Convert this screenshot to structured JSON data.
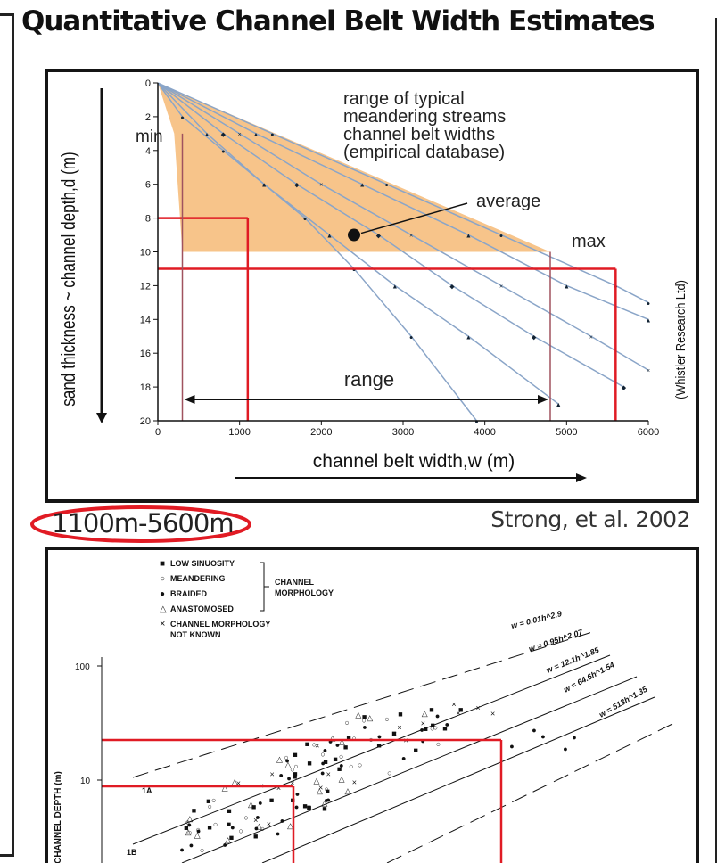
{
  "title": "Quantitative Channel Belt Width Estimates",
  "top_chart": {
    "ylabel": "sand thickness ~ channel depth,d (m)",
    "xlabel": "channel belt width,w (m)",
    "x_ticks": [
      "0",
      "1000",
      "2000",
      "3000",
      "4000",
      "5000",
      "6000"
    ],
    "y_ticks": [
      "0",
      "2",
      "4",
      "6",
      "8",
      "10",
      "12",
      "14",
      "16",
      "18",
      "20"
    ],
    "annotations": {
      "range_line1": "range of typical",
      "range_line2": "meandering streams",
      "range_line3": "channel belt widths",
      "range_line4": "(empirical database)",
      "average": "average",
      "min": "min",
      "max": "max",
      "range": "range",
      "credit": "(Whistler Research Ltd)"
    }
  },
  "range_result": "1100m-5600m",
  "citation": "Strong, et al. 2002",
  "bottom_chart": {
    "ylabel": "CHANNEL DEPTH (m)",
    "y_ticks": [
      "100",
      "10"
    ],
    "legend": [
      {
        "symbol": "■",
        "label": "LOW SINUOSITY"
      },
      {
        "symbol": "○",
        "label": "MEANDERING"
      },
      {
        "symbol": "●",
        "label": "BRAIDED"
      },
      {
        "symbol": "△",
        "label": "ANASTOMOSED"
      },
      {
        "symbol": "×",
        "label": "CHANNEL MORPHOLOGY"
      },
      {
        "symbol": "",
        "label": "NOT KNOWN"
      }
    ],
    "legend_group": [
      "CHANNEL",
      "MORPHOLOGY"
    ],
    "equations": [
      "w = 0.01h^2.9",
      "w = 0.95h^2.07",
      "w = 12.1h^1.85",
      "w = 64.6h^1.54",
      "w = 513h^1.35"
    ],
    "point_labels": [
      "1A",
      "1B"
    ]
  },
  "chart_data": [
    {
      "type": "line",
      "title": "",
      "xlabel": "channel belt width,w (m)",
      "ylabel": "sand thickness ~ channel depth,d (m)",
      "xlim": [
        0,
        6000
      ],
      "ylim": [
        20,
        0
      ],
      "series": [
        {
          "x": [
            0,
            300,
            800,
            1300,
            1800,
            2400,
            3100,
            3900
          ],
          "y": [
            0,
            2,
            4,
            6,
            8,
            11,
            15,
            20
          ]
        },
        {
          "x": [
            0,
            600,
            1300,
            2100,
            2900,
            3800,
            4900
          ],
          "y": [
            0,
            3,
            6,
            9,
            12,
            15,
            19
          ]
        },
        {
          "x": [
            0,
            800,
            1700,
            2700,
            3600,
            4600,
            5700
          ],
          "y": [
            0,
            3,
            6,
            9,
            12,
            15,
            18
          ]
        },
        {
          "x": [
            0,
            1000,
            2000,
            3100,
            4200,
            5300,
            6000
          ],
          "y": [
            0,
            3,
            6,
            9,
            12,
            15,
            17
          ]
        },
        {
          "x": [
            0,
            1200,
            2500,
            3800,
            5000,
            6000
          ],
          "y": [
            0,
            3,
            6,
            9,
            12,
            14
          ]
        },
        {
          "x": [
            0,
            1400,
            2800,
            4200,
            5600,
            6000
          ],
          "y": [
            0,
            3,
            6,
            9,
            12,
            13
          ]
        }
      ],
      "shaded_region": {
        "x": [
          200,
          0,
          4800,
          300
        ],
        "y": [
          3,
          0,
          10,
          10
        ]
      },
      "average_point": {
        "x": 2400,
        "y": 9
      },
      "selected_depths": [
        8,
        11
      ],
      "selected_widths": [
        1100,
        5600
      ],
      "range_markers": [
        300,
        4800
      ]
    },
    {
      "type": "scatter",
      "ylabel": "CHANNEL DEPTH (m)",
      "y_scale": "log",
      "ytick_values": [
        100,
        10
      ],
      "series": [
        {
          "name": "LOW SINUOSITY"
        },
        {
          "name": "MEANDERING"
        },
        {
          "name": "BRAIDED"
        },
        {
          "name": "ANASTOMOSED"
        },
        {
          "name": "CHANNEL MORPHOLOGY NOT KNOWN"
        }
      ],
      "reference_depths": [
        21,
        8
      ]
    }
  ],
  "colors": {
    "shade": "#f7c48a",
    "red": "#e01b24",
    "curve": "#8aa5c8",
    "callout": "#e11b24"
  }
}
